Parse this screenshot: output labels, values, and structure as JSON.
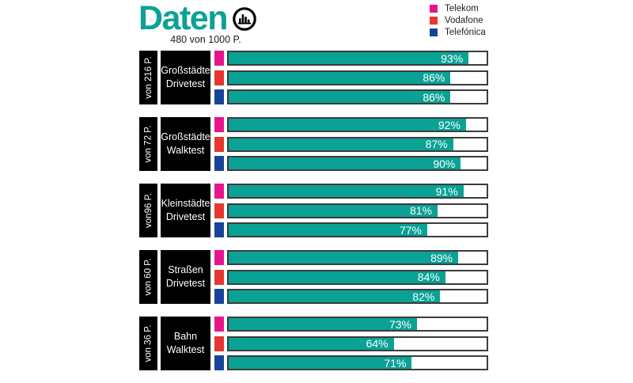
{
  "colors": {
    "accent": "#0BA296",
    "track_border": "#3C3C3B",
    "label_block_bg": "#000000",
    "bar_text": "#FFFFFF"
  },
  "icons": {
    "title_icon": "histogram-in-circle"
  },
  "chart_data": {
    "type": "bar",
    "orientation": "horizontal",
    "title": "Daten",
    "subtitle": "480 von 1000 P.",
    "unit": "%",
    "xlim": [
      0,
      100
    ],
    "grid": false,
    "legend_position": "top-right",
    "series": [
      {
        "name": "Telekom",
        "color": "#E8148C"
      },
      {
        "name": "Vodafone",
        "color": "#E6362F"
      },
      {
        "name": "Telefónica",
        "color": "#17449B"
      }
    ],
    "groups": [
      {
        "points_label": "von 216 P.",
        "category_lines": [
          "Großstädte",
          "Drivetest"
        ],
        "values": [
          93,
          86,
          86
        ]
      },
      {
        "points_label": "von 72 P.",
        "category_lines": [
          "Großstädte",
          "Walktest"
        ],
        "values": [
          92,
          87,
          90
        ]
      },
      {
        "points_label": "von96 P.",
        "category_lines": [
          "Kleinstädte",
          "Drivetest"
        ],
        "values": [
          91,
          81,
          77
        ]
      },
      {
        "points_label": "von 60 P.",
        "category_lines": [
          "Straßen",
          "Drivetest"
        ],
        "values": [
          89,
          84,
          82
        ]
      },
      {
        "points_label": "von 36 P.",
        "category_lines": [
          "Bahn",
          "Walktest"
        ],
        "values": [
          73,
          64,
          71
        ]
      }
    ]
  }
}
